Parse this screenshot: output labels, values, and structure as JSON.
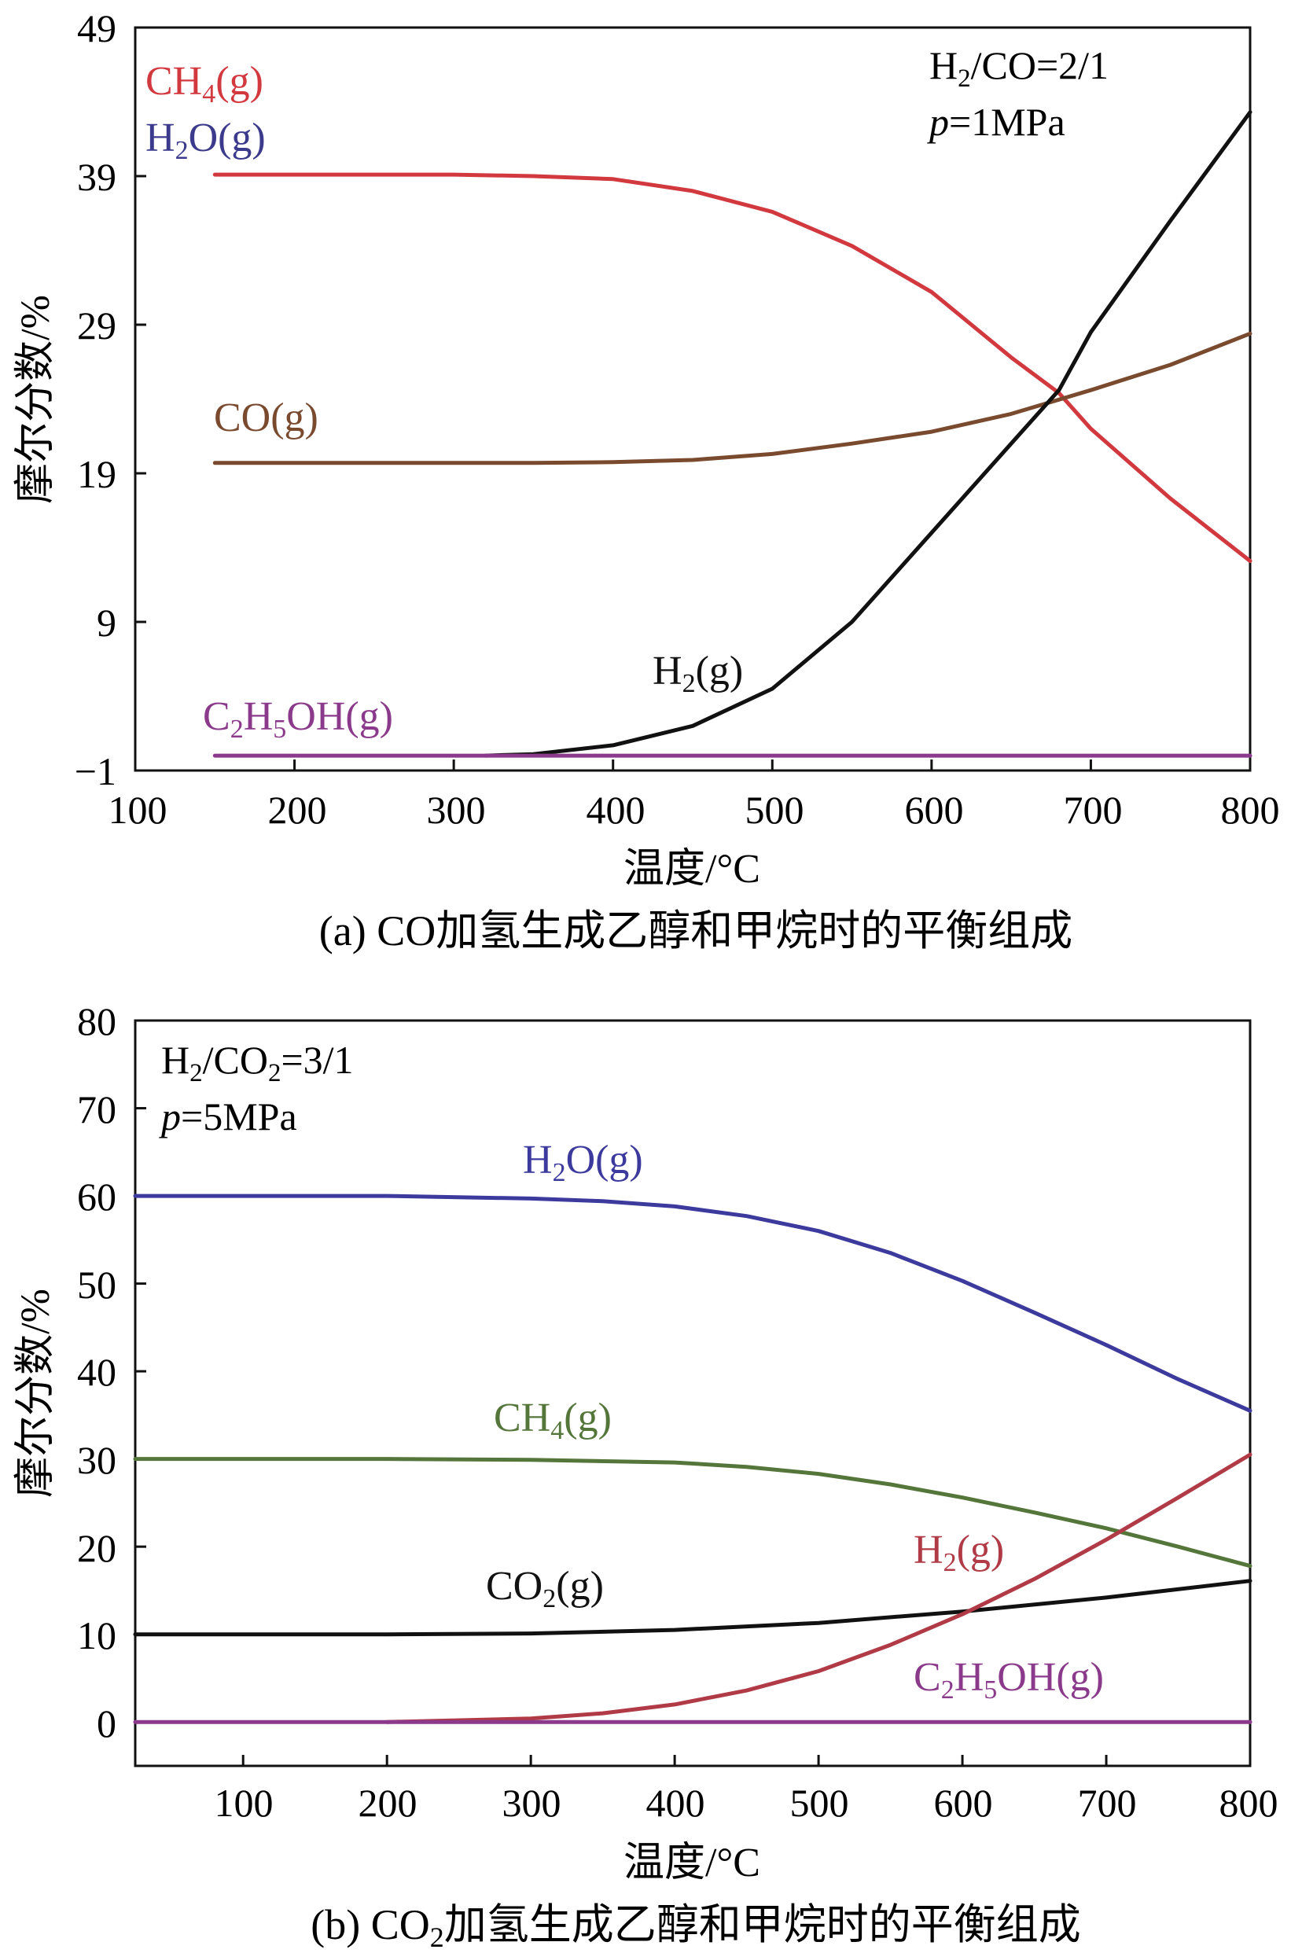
{
  "chart_data": [
    {
      "type": "line",
      "caption": "(a) CO加氢生成乙醇和甲烷时的平衡组成",
      "xlabel": "温度/°C",
      "ylabel": "摩尔分数/%",
      "xlim": [
        100,
        800
      ],
      "ylim": [
        -1,
        49
      ],
      "xticks": [
        100,
        200,
        300,
        400,
        500,
        600,
        700,
        800
      ],
      "yticks": [
        -1,
        9,
        19,
        29,
        39,
        49
      ],
      "xtick_labels": [
        "100",
        "200",
        "300",
        "400",
        "500",
        "600",
        "700",
        "800"
      ],
      "ytick_labels": [
        "−1",
        "9",
        "19",
        "29",
        "39",
        "49"
      ],
      "conditions": [
        "H2/CO=2/1",
        "p=1MPa"
      ],
      "series": [
        {
          "name": "CH4(g)",
          "color": "#d2393f",
          "x": [
            150,
            200,
            250,
            300,
            350,
            400,
            450,
            500,
            550,
            600,
            650,
            680,
            700,
            750,
            800
          ],
          "values": [
            39.1,
            39.1,
            39.1,
            39.1,
            39.0,
            38.8,
            38.0,
            36.6,
            34.3,
            31.2,
            26.8,
            24.4,
            22.0,
            17.3,
            13.1
          ]
        },
        {
          "name": "H2O(g)",
          "color": "#3b3a8c",
          "x": [],
          "values": []
        },
        {
          "name": "CO(g)",
          "color": "#7a4a2f",
          "x": [
            150,
            200,
            250,
            300,
            350,
            400,
            450,
            500,
            550,
            600,
            650,
            700,
            750,
            800
          ],
          "values": [
            19.7,
            19.7,
            19.7,
            19.7,
            19.7,
            19.75,
            19.9,
            20.3,
            21.0,
            21.8,
            23.0,
            24.6,
            26.3,
            28.4
          ]
        },
        {
          "name": "H2(g)",
          "color": "#111111",
          "x": [
            320,
            350,
            400,
            450,
            500,
            550,
            600,
            650,
            680,
            700,
            750,
            800
          ],
          "values": [
            0.0,
            0.1,
            0.7,
            2.0,
            4.5,
            9.0,
            15.0,
            21.0,
            24.6,
            28.5,
            36.0,
            43.3
          ]
        },
        {
          "name": "C2H5OH(g)",
          "color": "#8b3a8b",
          "x": [
            150,
            800
          ],
          "values": [
            0.0,
            0.0
          ]
        }
      ]
    },
    {
      "type": "line",
      "caption": "(b) CO2加氢生成乙醇和甲烷时的平衡组成",
      "xlabel": "温度/°C",
      "ylabel": "摩尔分数/%",
      "xlim": [
        25,
        800
      ],
      "ylim": [
        -5,
        80
      ],
      "xticks": [
        100,
        200,
        300,
        400,
        500,
        600,
        700,
        800
      ],
      "yticks": [
        0,
        10,
        20,
        30,
        40,
        50,
        60,
        70,
        80
      ],
      "xtick_labels": [
        "100",
        "200",
        "300",
        "400",
        "500",
        "600",
        "700",
        "800"
      ],
      "ytick_labels": [
        "0",
        "10",
        "20",
        "30",
        "40",
        "50",
        "60",
        "70",
        "80"
      ],
      "conditions": [
        "H2/CO2=3/1",
        "p=5MPa"
      ],
      "series": [
        {
          "name": "H2O(g)",
          "color": "#3d3a9e",
          "x": [
            25,
            100,
            200,
            300,
            350,
            400,
            450,
            500,
            550,
            600,
            650,
            700,
            750,
            800
          ],
          "values": [
            60.0,
            60.0,
            60.0,
            59.7,
            59.4,
            58.8,
            57.7,
            56.0,
            53.5,
            50.3,
            46.7,
            43.0,
            39.1,
            35.5
          ]
        },
        {
          "name": "CH4(g)",
          "color": "#55763a",
          "x": [
            25,
            100,
            200,
            300,
            400,
            450,
            500,
            550,
            600,
            650,
            700,
            750,
            800
          ],
          "values": [
            30.0,
            30.0,
            30.0,
            29.9,
            29.6,
            29.1,
            28.3,
            27.1,
            25.6,
            23.9,
            22.1,
            20.0,
            17.8
          ]
        },
        {
          "name": "CO2(g)",
          "color": "#111111",
          "x": [
            25,
            100,
            200,
            300,
            400,
            500,
            600,
            700,
            800
          ],
          "values": [
            10.0,
            10.0,
            10.0,
            10.1,
            10.5,
            11.3,
            12.6,
            14.2,
            16.1
          ]
        },
        {
          "name": "H2(g)",
          "color": "#b13a47",
          "x": [
            200,
            300,
            350,
            400,
            450,
            500,
            550,
            600,
            650,
            700,
            750,
            800
          ],
          "values": [
            0.0,
            0.4,
            1.0,
            2.0,
            3.6,
            5.8,
            8.8,
            12.3,
            16.3,
            20.8,
            25.6,
            30.5
          ]
        },
        {
          "name": "C2H5OH(g)",
          "color": "#8b3a8b",
          "x": [
            25,
            800
          ],
          "values": [
            0.0,
            0.0
          ]
        }
      ]
    }
  ]
}
